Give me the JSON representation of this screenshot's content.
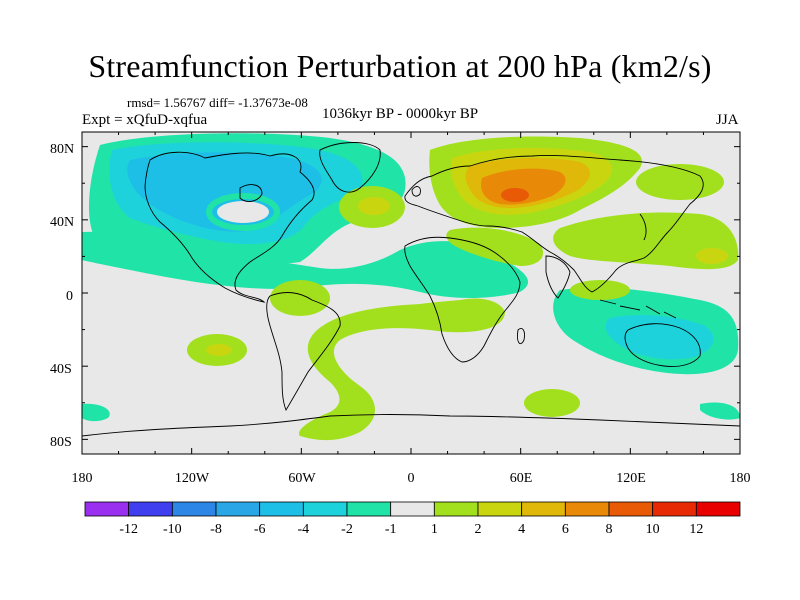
{
  "title": "Streamfunction Perturbation at 200 hPa (km2/s)",
  "stats": "rmsd= 1.56767 diff= -1.37673e-08",
  "experiment": "Expt = xQfuD-xqfua",
  "period": "1036kyr BP - 0000kyr BP",
  "season": "JJA",
  "lat_labels": [
    "80N",
    "40N",
    "0",
    "40S",
    "80S"
  ],
  "lon_labels": [
    "180",
    "120W",
    "60W",
    "0",
    "60E",
    "120E",
    "180"
  ],
  "colorbar": {
    "labels": [
      "-12",
      "-10",
      "-8",
      "-6",
      "-4",
      "-2",
      "-1",
      "1",
      "2",
      "4",
      "6",
      "8",
      "10",
      "12"
    ],
    "colors": [
      "#9b2ff0",
      "#3f3ff0",
      "#2c86e6",
      "#29a6e6",
      "#1ebfe6",
      "#1ed2dc",
      "#20e3a8",
      "#e8e8e8",
      "#a2e01e",
      "#c9d60f",
      "#e0b80a",
      "#e88a08",
      "#e85a06",
      "#e82a04",
      "#e80000"
    ]
  },
  "colors": {
    "background_zero": "#e8e8e8",
    "coast": "#000000"
  }
}
